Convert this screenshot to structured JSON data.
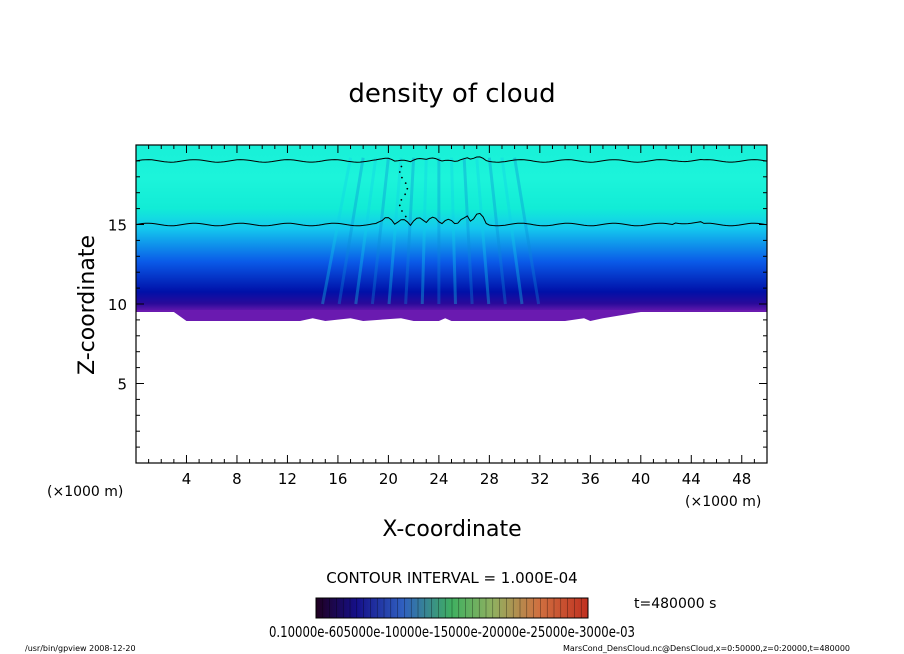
{
  "chart_data": {
    "type": "heatmap",
    "title": "density of cloud",
    "xlabel": "X-coordinate",
    "ylabel": "Z-coordinate",
    "x_unit_left": "(×1000 m)",
    "x_unit_right": "(×1000 m)",
    "xlim": [
      0,
      50
    ],
    "ylim": [
      0,
      20
    ],
    "x_ticks": [
      "4",
      "8",
      "12",
      "16",
      "20",
      "24",
      "28",
      "32",
      "36",
      "40",
      "44",
      "48"
    ],
    "x_tick_values": [
      4,
      8,
      12,
      16,
      20,
      24,
      28,
      32,
      36,
      40,
      44,
      48
    ],
    "y_ticks": [
      "5",
      "10",
      "15"
    ],
    "y_tick_values": [
      5,
      10,
      15
    ],
    "cloud_base_z": 9.5,
    "cloud_top_z": 20,
    "contour_levels_z": [
      15,
      19
    ],
    "contour_interval": "CONTOUR INTERVAL = 1.000E-04",
    "time_label": "t=480000 s",
    "colorbar_labels": "0.10000e-605000e-10000e-15000e-20000e-25000e-3000e-03",
    "colors": {
      "low": "#3b0a80",
      "mid": "#0a2ad0",
      "high": "#15f2e0"
    }
  },
  "footer": {
    "left": "/usr/bin/gpview   2008-12-20",
    "right": "MarsCond_DensCloud.nc@DensCloud,x=0:50000,z=0:20000,t=480000"
  }
}
